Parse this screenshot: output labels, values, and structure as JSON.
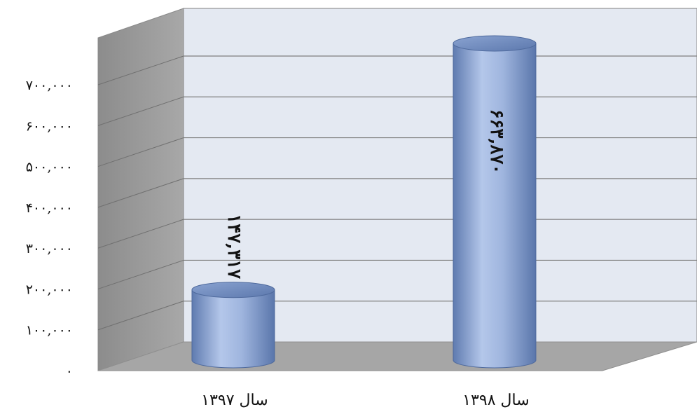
{
  "chart_data": {
    "type": "bar",
    "style": "3d-cylinder",
    "categories": [
      "سال ۱۳۹۷",
      "سال ۱۳۹۸"
    ],
    "values": [
      147317,
      663870
    ],
    "data_labels": [
      "۱۴۷,۳۱۷",
      "۶۶۳,۸۷۰"
    ],
    "y_ticks": [
      0,
      100000,
      200000,
      300000,
      400000,
      500000,
      600000,
      700000
    ],
    "y_tick_labels": [
      "۰",
      "۱۰۰,۰۰۰",
      "۲۰۰,۰۰۰",
      "۳۰۰,۰۰۰",
      "۴۰۰,۰۰۰",
      "۵۰۰,۰۰۰",
      "۶۰۰,۰۰۰",
      "۷۰۰,۰۰۰"
    ],
    "ylim": [
      0,
      700000
    ],
    "grid": true,
    "legend": "none",
    "title": "",
    "xlabel": "",
    "ylabel": "",
    "colors": {
      "bar": "#9db3dc",
      "bar_dark": "#5d79ae",
      "back_wall": "#e4e9f2",
      "side_wall": "#9a9a9a",
      "floor": "#a6a6a6",
      "grid": "#7f7f7f"
    }
  }
}
